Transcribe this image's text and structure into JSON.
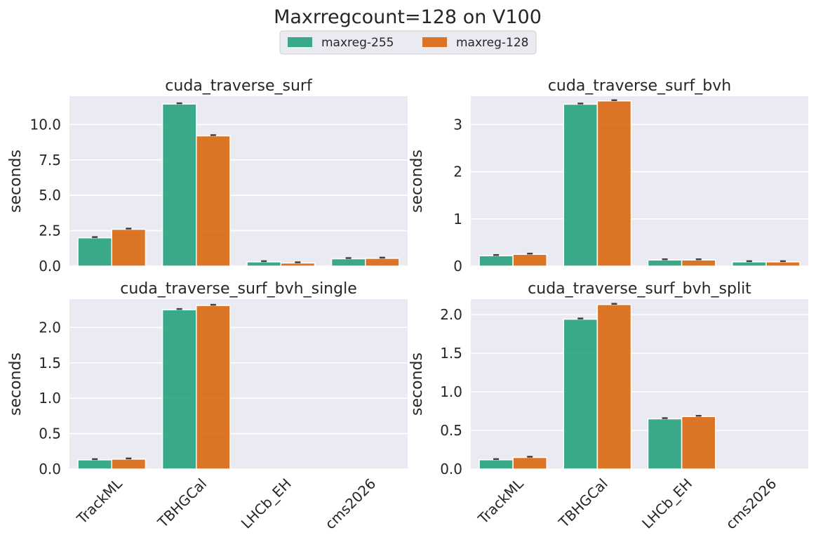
{
  "figure_title": "Maxrregcount=128 on V100",
  "legend": {
    "placement": "top-center",
    "items": [
      {
        "label": "maxreg-255",
        "color": "#1b9e77"
      },
      {
        "label": "maxreg-128",
        "color": "#d95f02"
      }
    ]
  },
  "style": {
    "background": "#eaeaf2",
    "grid": true,
    "grid_color": "#ffffff",
    "bar_alpha": 0.85,
    "errbar_color": "#3f3f3f"
  },
  "chart_data": [
    {
      "type": "bar",
      "title": "cuda_traverse_surf",
      "ylabel": "seconds",
      "xlabel": "",
      "ylim": [
        0,
        12
      ],
      "yticks": [
        "0.0",
        "2.5",
        "5.0",
        "7.5",
        "10.0"
      ],
      "ytick_values": [
        0,
        2.5,
        5,
        7.5,
        10
      ],
      "categories": [
        "TrackML",
        "TBHGCal",
        "LHCb_EH",
        "cms2026"
      ],
      "show_xticklabels": false,
      "series": [
        {
          "name": "maxreg-255",
          "values": [
            2.0,
            11.45,
            0.3,
            0.52
          ]
        },
        {
          "name": "maxreg-128",
          "values": [
            2.6,
            9.2,
            0.22,
            0.55
          ]
        }
      ]
    },
    {
      "type": "bar",
      "title": "cuda_traverse_surf_bvh",
      "ylabel": "seconds",
      "xlabel": "",
      "ylim": [
        0,
        3.6
      ],
      "yticks": [
        "0",
        "1",
        "2",
        "3"
      ],
      "ytick_values": [
        0,
        1,
        2,
        3
      ],
      "categories": [
        "TrackML",
        "TBHGCal",
        "LHCb_EH",
        "cms2026"
      ],
      "show_xticklabels": false,
      "series": [
        {
          "name": "maxreg-255",
          "values": [
            0.22,
            3.43,
            0.13,
            0.09
          ]
        },
        {
          "name": "maxreg-128",
          "values": [
            0.25,
            3.5,
            0.13,
            0.09
          ]
        }
      ]
    },
    {
      "type": "bar",
      "title": "cuda_traverse_surf_bvh_single",
      "ylabel": "seconds",
      "xlabel": "",
      "ylim": [
        0,
        2.4
      ],
      "yticks": [
        "0.0",
        "0.5",
        "1.0",
        "1.5",
        "2.0"
      ],
      "ytick_values": [
        0,
        0.5,
        1,
        1.5,
        2
      ],
      "categories": [
        "TrackML",
        "TBHGCal",
        "LHCb_EH",
        "cms2026"
      ],
      "show_xticklabels": true,
      "series": [
        {
          "name": "maxreg-255",
          "values": [
            0.13,
            2.25,
            0,
            0
          ]
        },
        {
          "name": "maxreg-128",
          "values": [
            0.14,
            2.31,
            0,
            0
          ]
        }
      ]
    },
    {
      "type": "bar",
      "title": "cuda_traverse_surf_bvh_split",
      "ylabel": "seconds",
      "xlabel": "",
      "ylim": [
        0,
        2.2
      ],
      "yticks": [
        "0.0",
        "0.5",
        "1.0",
        "1.5",
        "2.0"
      ],
      "ytick_values": [
        0,
        0.5,
        1,
        1.5,
        2
      ],
      "categories": [
        "TrackML",
        "TBHGCal",
        "LHCb_EH",
        "cms2026"
      ],
      "show_xticklabels": true,
      "series": [
        {
          "name": "maxreg-255",
          "values": [
            0.12,
            1.94,
            0.65,
            0
          ]
        },
        {
          "name": "maxreg-128",
          "values": [
            0.15,
            2.13,
            0.68,
            0
          ]
        }
      ]
    }
  ]
}
